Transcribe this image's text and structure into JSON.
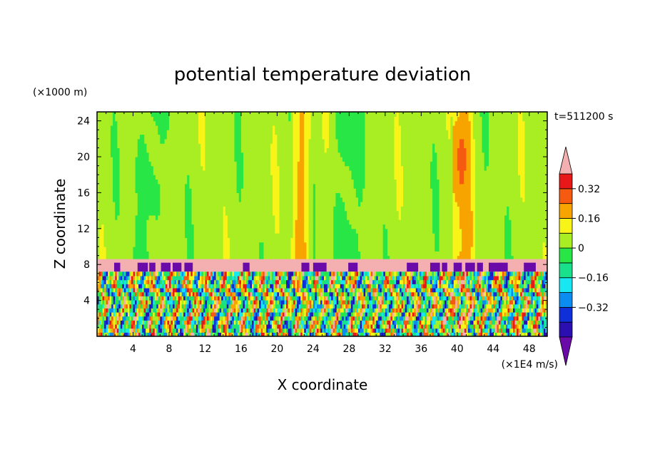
{
  "chart_data": {
    "type": "heatmap",
    "title": "potential temperature deviation",
    "xlabel": "X coordinate",
    "ylabel": "Z coordinate",
    "x_unit_label": "(×1E4 m/s)",
    "y_unit_label": "(×1000 m)",
    "time_label": "t=511200 s",
    "xlim": [
      0,
      50
    ],
    "ylim": [
      0,
      25
    ],
    "x_ticks": [
      4,
      8,
      12,
      16,
      20,
      24,
      28,
      32,
      36,
      40,
      44,
      48
    ],
    "x_tick_labels": [
      "4",
      "8",
      "12",
      "16",
      "20",
      "24",
      "28",
      "32",
      "36",
      "40",
      "44",
      "48"
    ],
    "y_ticks": [
      4,
      8,
      12,
      16,
      20,
      24
    ],
    "y_tick_labels": [
      "4",
      "8",
      "12",
      "16",
      "20",
      "24"
    ],
    "colorbar": {
      "levels": [
        -0.48,
        -0.4,
        -0.32,
        -0.24,
        -0.16,
        -0.08,
        0,
        0.08,
        0.16,
        0.24,
        0.32,
        0.4
      ],
      "colors": [
        "#6a0aa8",
        "#2b0fb0",
        "#0f2fd9",
        "#0a8cf0",
        "#18e6f0",
        "#19e08a",
        "#28e646",
        "#a8ee22",
        "#f8f418",
        "#f8a400",
        "#f55a10",
        "#e81818",
        "#f4b0b0"
      ],
      "tick_values": [
        -0.32,
        -0.16,
        0,
        0.16,
        0.32
      ],
      "tick_labels": [
        "−0.32",
        "−0.16",
        "0",
        "0.16",
        "0.32"
      ],
      "extend": "both"
    },
    "field_summary": {
      "upper_layer_z_range": [
        8.5,
        25
      ],
      "upper_layer_background_value": 0.04,
      "upper_layer_cool_x_ranges": [
        [
          4,
          7.5
        ],
        [
          26,
          29.5
        ]
      ],
      "upper_layer_warm_x_ranges": [
        [
          21.5,
          24
        ],
        [
          39.5,
          42
        ]
      ],
      "upper_layer_peak_x": 40.5,
      "upper_layer_peak_value": 0.28,
      "stable_band_z_range": [
        7.2,
        8.6
      ],
      "stable_band_value": 0.45,
      "lower_layer_z_range": [
        0,
        7.2
      ],
      "lower_layer_value_range": [
        -0.48,
        0.45
      ]
    }
  }
}
